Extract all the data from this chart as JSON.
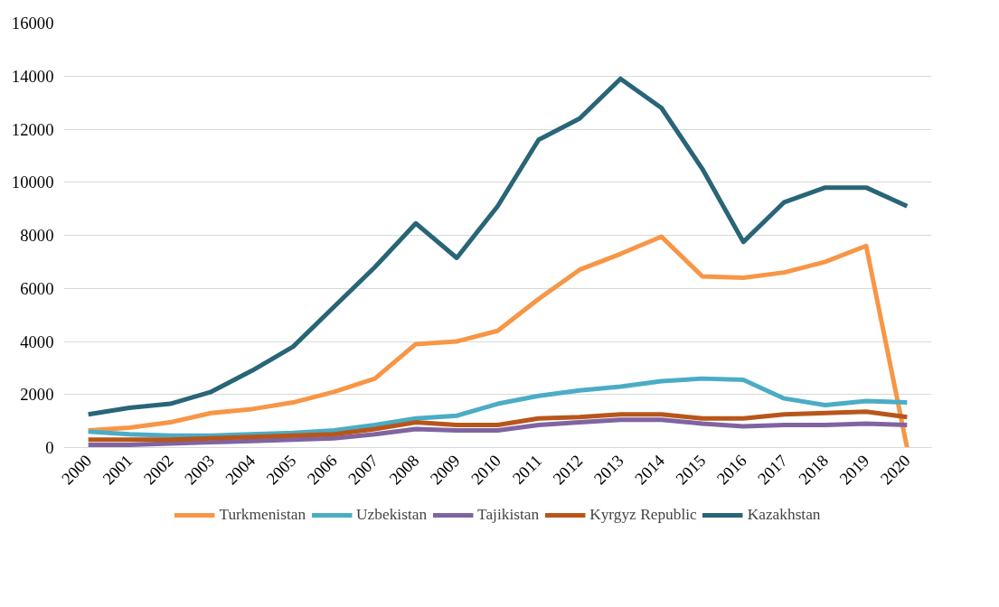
{
  "chart_data": {
    "type": "line",
    "categories": [
      "2000",
      "2001",
      "2002",
      "2003",
      "2004",
      "2005",
      "2006",
      "2007",
      "2008",
      "2009",
      "2010",
      "2011",
      "2012",
      "2013",
      "2014",
      "2015",
      "2016",
      "2017",
      "2018",
      "2019",
      "2020"
    ],
    "ylim": [
      0,
      16000
    ],
    "yticks": [
      0,
      2000,
      4000,
      6000,
      8000,
      10000,
      12000,
      14000,
      16000
    ],
    "grid": "y",
    "legend": "bottom",
    "marker": "none",
    "line_style": "solid",
    "series": [
      {
        "name": "Turkmenistan",
        "color": "#f79646",
        "values": [
          650,
          750,
          950,
          1300,
          1450,
          1700,
          2100,
          2600,
          3900,
          4000,
          4400,
          5600,
          6700,
          7300,
          7950,
          6450,
          6400,
          6600,
          7000,
          7600,
          0
        ]
      },
      {
        "name": "Uzbekistan",
        "color": "#4bacc6",
        "values": [
          600,
          500,
          450,
          450,
          500,
          550,
          650,
          850,
          1100,
          1200,
          1650,
          1950,
          2150,
          2300,
          2500,
          2600,
          2550,
          1850,
          1600,
          1750,
          1700
        ]
      },
      {
        "name": "Tajikistan",
        "color": "#8064a2",
        "values": [
          100,
          100,
          150,
          200,
          250,
          300,
          350,
          500,
          700,
          650,
          650,
          850,
          950,
          1050,
          1050,
          900,
          800,
          850,
          850,
          900,
          850
        ]
      },
      {
        "name": "Kyrgyz Republic",
        "color": "#b8561a",
        "values": [
          300,
          300,
          300,
          350,
          400,
          450,
          500,
          700,
          950,
          850,
          850,
          1100,
          1150,
          1250,
          1250,
          1100,
          1100,
          1250,
          1300,
          1350,
          1150
        ]
      },
      {
        "name": "Kazakhstan",
        "color": "#286577",
        "values": [
          1250,
          1500,
          1650,
          2100,
          2900,
          3800,
          5300,
          6800,
          8450,
          7150,
          9100,
          11600,
          12400,
          13900,
          12800,
          10500,
          7750,
          9250,
          9800,
          9800,
          9100
        ]
      }
    ]
  }
}
